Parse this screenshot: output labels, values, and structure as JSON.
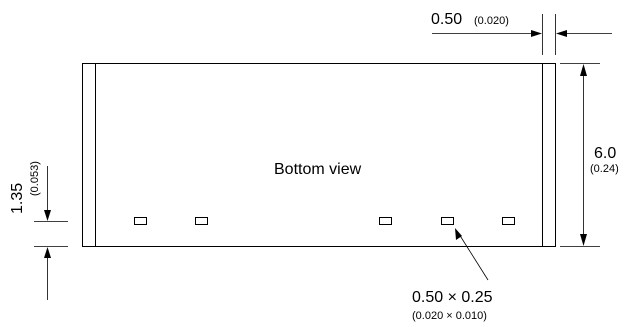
{
  "view_label": "Bottom view",
  "dim_pad_pitch": {
    "value": "0.50",
    "inch": "(0.020)"
  },
  "dim_height": {
    "value": "6.0",
    "inch": "(0.24)"
  },
  "dim_offset": {
    "value": "1.35",
    "inch": "(0.053)"
  },
  "dim_pad_size": {
    "value": "0.50 × 0.25",
    "inch": "(0.020 × 0.010)"
  },
  "pads": [
    {
      "id": "pad-1"
    },
    {
      "id": "pad-2"
    },
    {
      "id": "pad-3"
    },
    {
      "id": "pad-4"
    },
    {
      "id": "pad-5"
    }
  ]
}
